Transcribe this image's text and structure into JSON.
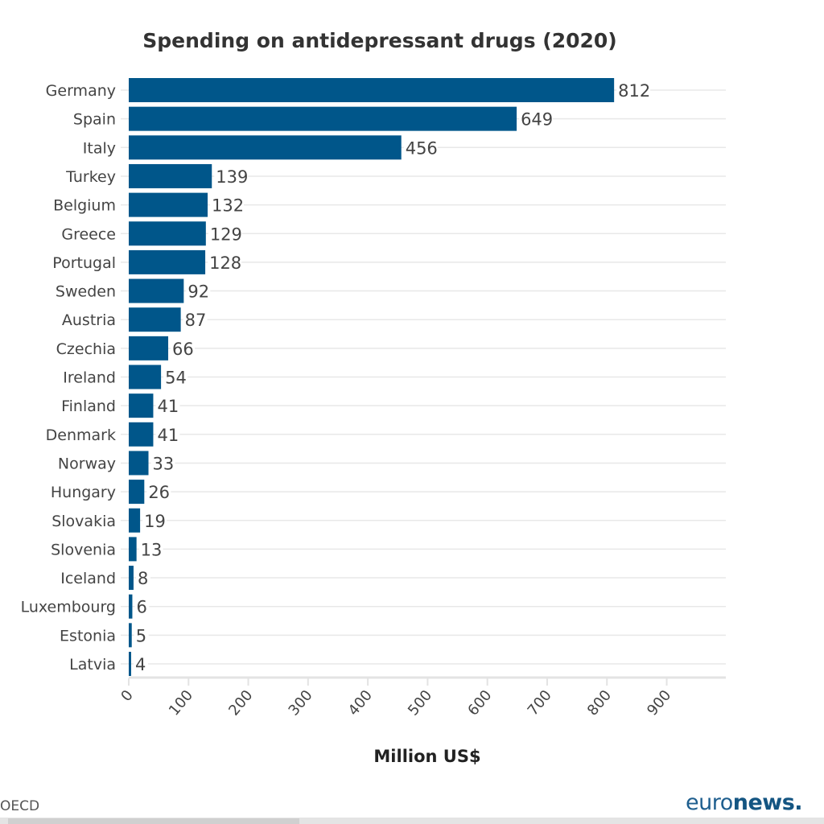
{
  "chart_data": {
    "type": "bar",
    "orientation": "horizontal",
    "title": "Spending on antidepressant drugs (2020)",
    "xlabel": "Million US$",
    "ylabel": "",
    "xlim": [
      0,
      1000
    ],
    "xticks": [
      0,
      100,
      200,
      300,
      400,
      500,
      600,
      700,
      800,
      900
    ],
    "grid": true,
    "bar_color": "#00568a",
    "categories": [
      "Germany",
      "Spain",
      "Italy",
      "Turkey",
      "Belgium",
      "Greece",
      "Portugal",
      "Sweden",
      "Austria",
      "Czechia",
      "Ireland",
      "Finland",
      "Denmark",
      "Norway",
      "Hungary",
      "Slovakia",
      "Slovenia",
      "Iceland",
      "Luxembourg",
      "Estonia",
      "Latvia"
    ],
    "values": [
      812,
      649,
      456,
      139,
      132,
      129,
      128,
      92,
      87,
      66,
      54,
      41,
      41,
      33,
      26,
      19,
      13,
      8,
      6,
      5,
      4
    ]
  },
  "footer": {
    "source": "OECD",
    "logo_light": "euro",
    "logo_bold": "news."
  }
}
